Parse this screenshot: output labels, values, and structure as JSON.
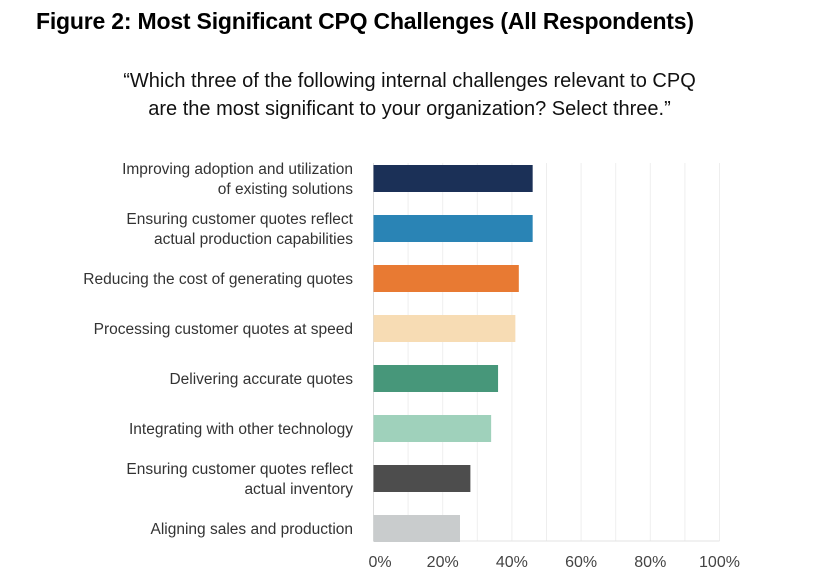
{
  "chart_data": {
    "type": "bar",
    "orientation": "horizontal",
    "title": "Figure 2: Most Significant CPQ Challenges (All Respondents)",
    "subtitle": [
      "“Which three of the following internal challenges relevant to CPQ",
      "are the most significant to your organization? Select three.”"
    ],
    "categories": [
      [
        "Improving adoption and utilization",
        "of existing solutions"
      ],
      [
        "Ensuring customer quotes reflect",
        "actual production capabilities"
      ],
      [
        "Reducing the cost of generating quotes"
      ],
      [
        "Processing customer quotes at speed"
      ],
      [
        "Delivering accurate quotes"
      ],
      [
        "Integrating with other technology"
      ],
      [
        "Ensuring customer quotes reflect",
        "actual inventory"
      ],
      [
        "Aligning sales and production"
      ]
    ],
    "values": [
      46,
      46,
      42,
      41,
      36,
      34,
      28,
      25
    ],
    "colors": [
      "#1b3057",
      "#2a84b5",
      "#e87a33",
      "#f7dcb4",
      "#47977a",
      "#9fd1bb",
      "#4d4d4d",
      "#c9cccd"
    ],
    "xlim": [
      0,
      100
    ],
    "xticks": [
      0,
      20,
      40,
      60,
      80,
      100
    ],
    "xtick_labels": [
      "0%",
      "20%",
      "40%",
      "60%",
      "80%",
      "100%"
    ],
    "grid": true,
    "legend": "none"
  }
}
